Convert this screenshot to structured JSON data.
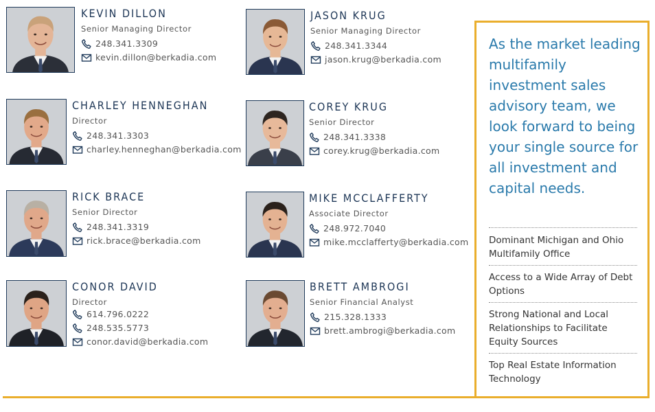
{
  "team": [
    {
      "name": "KEVIN DILLON",
      "title": "Senior Managing Director",
      "phones": [
        "248.341.3309"
      ],
      "email": "kevin.dillon@berkadia.com",
      "photo": "headshot-kevin-dillon"
    },
    {
      "name": "JASON KRUG",
      "title": "Senior Managing Director",
      "phones": [
        "248.341.3344"
      ],
      "email": "jason.krug@berkadia.com",
      "photo": "headshot-jason-krug"
    },
    {
      "name": "CHARLEY HENNEGHAN",
      "title": "Director",
      "phones": [
        "248.341.3303"
      ],
      "email": "charley.henneghan@berkadia.com",
      "photo": "headshot-charley-henneghan"
    },
    {
      "name": "COREY KRUG",
      "title": "Senior Director",
      "phones": [
        "248.341.3338"
      ],
      "email": "corey.krug@berkadia.com",
      "photo": "headshot-corey-krug"
    },
    {
      "name": "RICK BRACE",
      "title": "Senior Director",
      "phones": [
        "248.341.3319"
      ],
      "email": "rick.brace@berkadia.com",
      "photo": "headshot-rick-brace"
    },
    {
      "name": "MIKE MCCLAFFERTY",
      "title": "Associate Director",
      "phones": [
        "248.972.7040"
      ],
      "email": "mike.mcclafferty@berkadia.com",
      "photo": "headshot-mike-mcclafferty"
    },
    {
      "name": "CONOR DAVID",
      "title": "Director",
      "phones": [
        "614.796.0222",
        "248.535.5773"
      ],
      "email": "conor.david@berkadia.com",
      "photo": "headshot-conor-david"
    },
    {
      "name": "BRETT AMBROGI",
      "title": "Senior Financial Analyst",
      "phones": [
        "215.328.1333"
      ],
      "email": "brett.ambrogi@berkadia.com",
      "photo": "headshot-brett-ambrogi"
    }
  ],
  "sidebar": {
    "tagline": "As the market leading multifamily investment sales advisory team, we look forward to being your single source for all investment and capital needs.",
    "features": [
      "Dominant Michigan and Ohio Multifamily Office",
      "Access to a Wide Array of Debt Options",
      "Strong National and Local Relationships to Facilitate Equity Sources",
      "Top Real Estate Information Technology"
    ]
  },
  "icons": {
    "phone": "phone-icon",
    "email": "email-icon"
  },
  "colors": {
    "accent": "#eaae2c",
    "name": "#1c3555",
    "tagline": "#2a7aab",
    "photo_border": "#1f3a5a"
  }
}
